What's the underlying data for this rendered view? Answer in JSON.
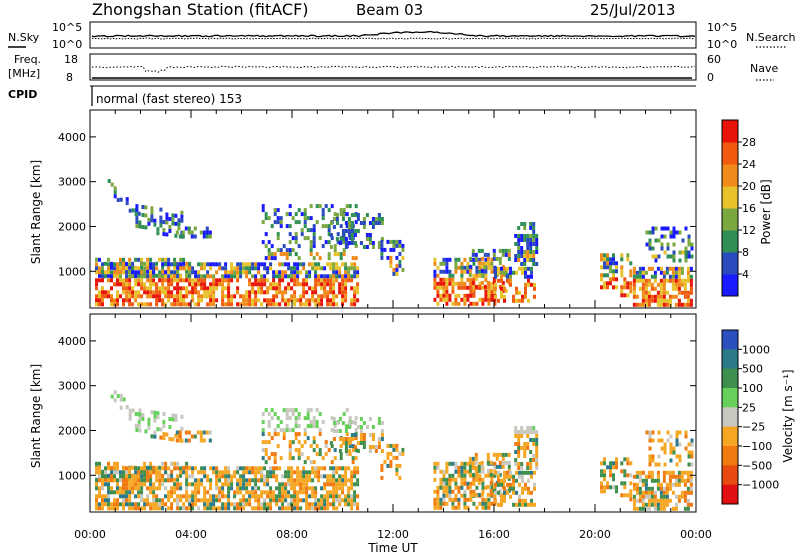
{
  "header": {
    "station": "Zhongshan Station (fitACF)",
    "beam": "Beam 03",
    "date": "25/Jul/2013"
  },
  "top_panels": {
    "nsky_label": "N.Sky",
    "nsearch_label": "N.Search",
    "noise_ticks": [
      "10^5",
      "10^0"
    ],
    "freq_label_1": "Freq.",
    "freq_label_2": "[MHz]",
    "freq_ticks": [
      "18",
      "8"
    ],
    "nave_label": "Nave",
    "nave_ticks": [
      "60",
      "0"
    ],
    "cpid_label": "CPID",
    "cpid_text": "normal (fast stereo) 153"
  },
  "colors": {
    "power_scale": [
      "#1a1aff",
      "#2a4bbd",
      "#2f8f55",
      "#7aa83e",
      "#e8c22a",
      "#f08a1a",
      "#f25a0f",
      "#e8140a"
    ],
    "velocity_scale": [
      "#2b4fbd",
      "#2a7a8a",
      "#3f8f4f",
      "#66d05a",
      "#c8c8c0",
      "#f5a623",
      "#f07a10",
      "#e84a10",
      "#e01010"
    ]
  },
  "chart_data": [
    {
      "type": "heatmap",
      "panel": "power",
      "ylabel": "Slant Range [km]",
      "xlabel": "",
      "x_ticks": [
        "00:00",
        "04:00",
        "08:00",
        "12:00",
        "16:00",
        "20:00",
        "00:00"
      ],
      "xlim_hours": [
        0,
        24
      ],
      "ylim_km": [
        180,
        4600
      ],
      "y_ticks": [
        1000,
        2000,
        3000,
        4000
      ],
      "colorbar_label": "Power [dB]",
      "colorbar_ticks": [
        4,
        8,
        12,
        16,
        20,
        24,
        28
      ],
      "colorbar_range": [
        0,
        32
      ]
    },
    {
      "type": "heatmap",
      "panel": "velocity",
      "ylabel": "Slant Range [km]",
      "xlabel": "Time UT",
      "x_ticks": [
        "00:00",
        "04:00",
        "08:00",
        "12:00",
        "16:00",
        "20:00",
        "00:00"
      ],
      "xlim_hours": [
        0,
        24
      ],
      "ylim_km": [
        180,
        4600
      ],
      "y_ticks": [
        1000,
        2000,
        3000,
        4000
      ],
      "colorbar_label": "Velocity [m s⁻¹]",
      "colorbar_ticks": [
        "1000",
        "500",
        "100",
        "25",
        "−25",
        "−100",
        "−500",
        "−1000"
      ]
    }
  ]
}
